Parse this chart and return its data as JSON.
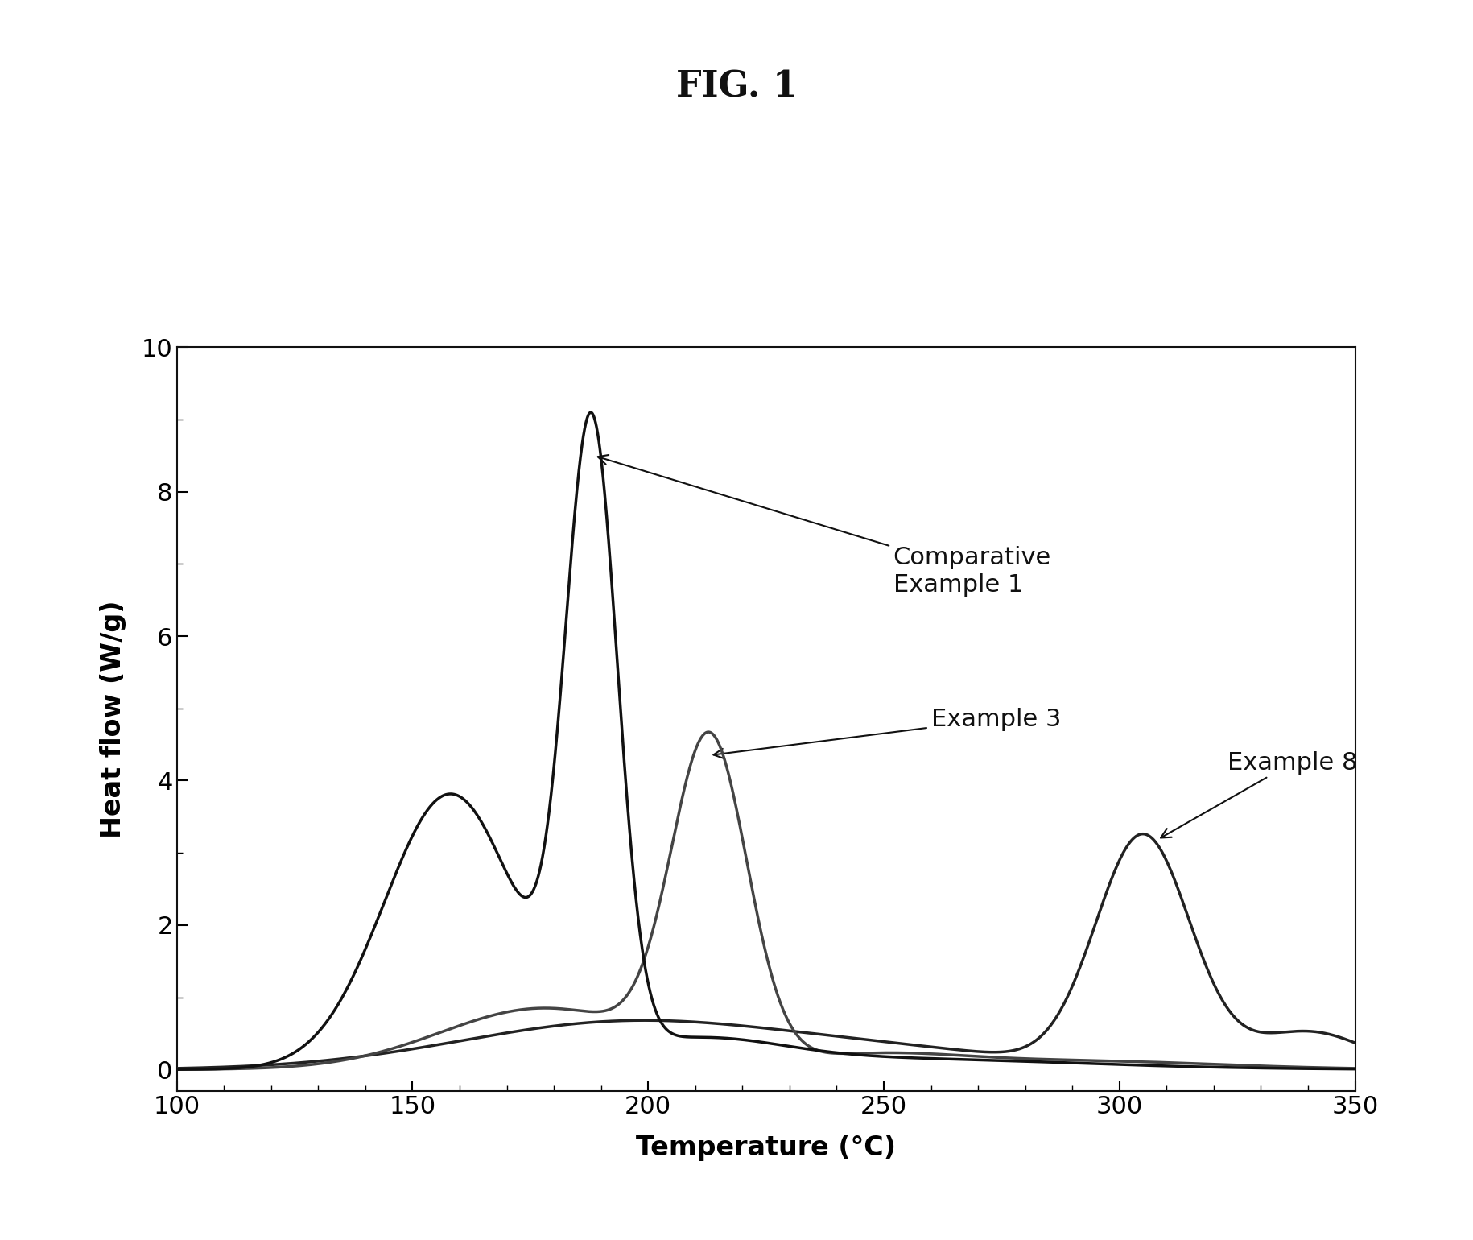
{
  "title": "FIG. 1",
  "xlabel": "Temperature (°C)",
  "ylabel": "Heat flow (W/g)",
  "xlim": [
    100,
    350
  ],
  "ylim": [
    -0.3,
    10
  ],
  "xticks": [
    100,
    150,
    200,
    250,
    300,
    350
  ],
  "yticks": [
    0,
    2,
    4,
    6,
    8,
    10
  ],
  "bg_color": "#ffffff",
  "title_fontsize": 32,
  "label_fontsize": 24,
  "tick_fontsize": 22,
  "annot_fontsize": 22,
  "curve1_color": "#111111",
  "curve2_color": "#444444",
  "curve3_color": "#222222",
  "linewidth": 2.5,
  "figsize": [
    18.3,
    15.4
  ],
  "dpi": 100
}
